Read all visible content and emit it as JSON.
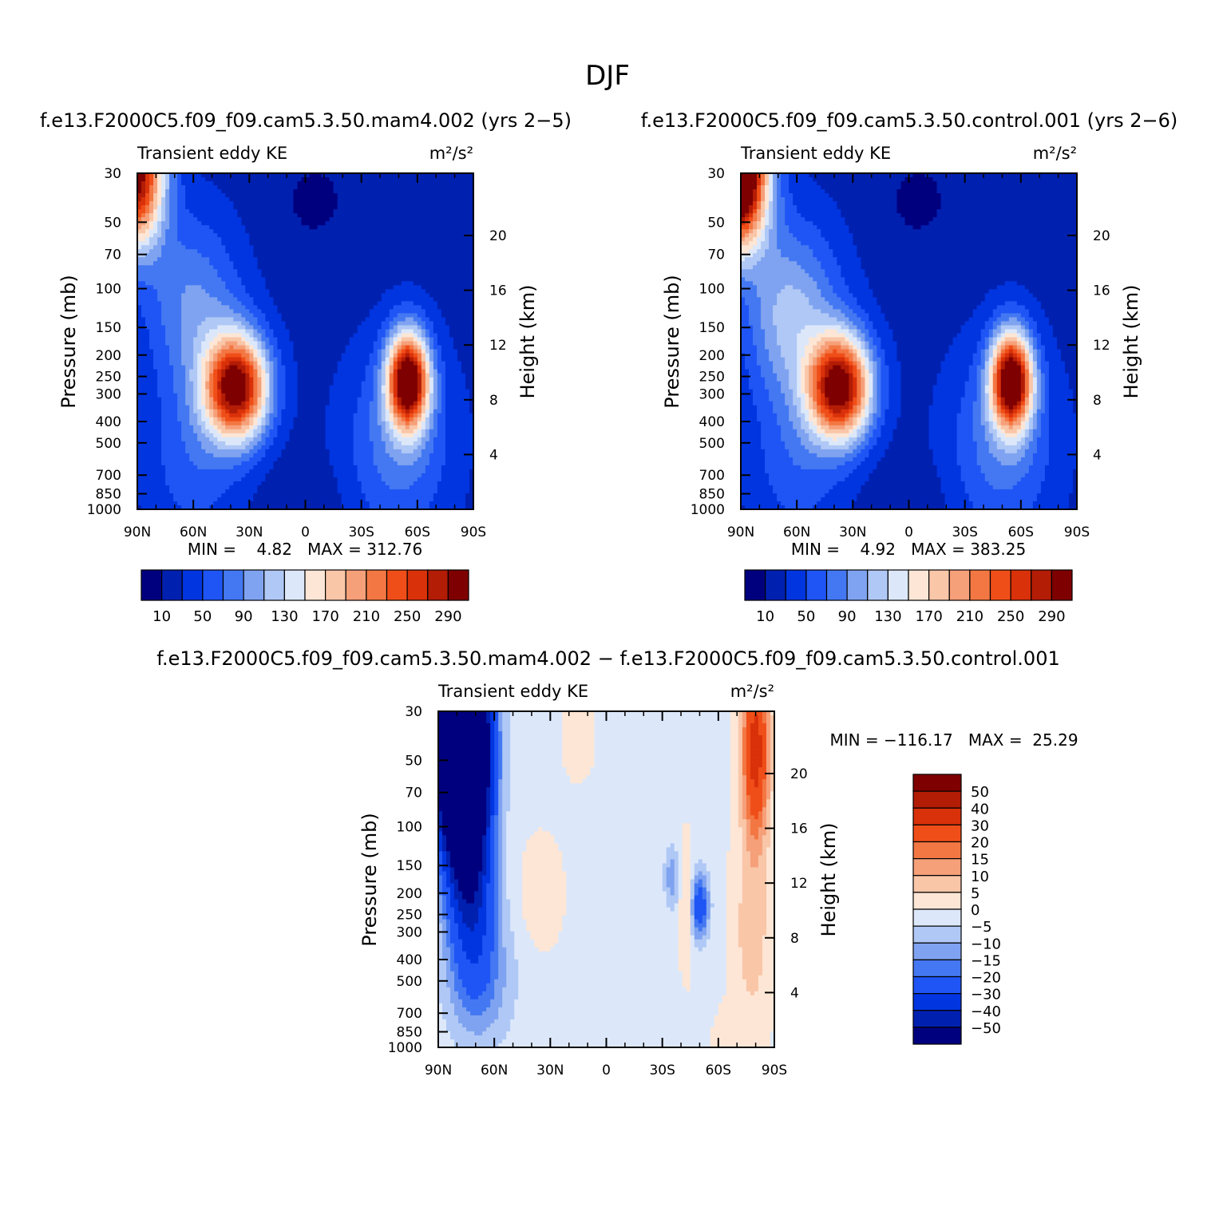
{
  "figure": {
    "title": "DJF"
  },
  "chart_data": [
    {
      "type": "heatmap",
      "title": "f.e13.F2000C5.f09_f09.cam5.3.50.mam4.002 (yrs 2−5)",
      "subtitle_left": "Transient eddy KE",
      "units": "m²/s²",
      "xlabel": "",
      "ylabel": "Pressure (mb)",
      "ylabel_right": "Height (km)",
      "x_ticks": [
        "90N",
        "60N",
        "30N",
        "0",
        "30S",
        "60S",
        "90S"
      ],
      "x_values": [
        90,
        60,
        30,
        0,
        -30,
        -60,
        -90
      ],
      "y_ticks": [
        30,
        50,
        70,
        100,
        150,
        200,
        250,
        300,
        400,
        500,
        700,
        850,
        1000
      ],
      "y_right_ticks": [
        4,
        8,
        12,
        16,
        20
      ],
      "y_scale": "log-pressure",
      "min_label": "MIN =    4.82   MAX = 312.76",
      "colorbar_labels": [
        "10",
        "50",
        "90",
        "130",
        "170",
        "210",
        "250",
        "290"
      ],
      "colorbar_orientation": "horizontal",
      "field_peaks": [
        {
          "lat": 35,
          "p": 270,
          "value": 300
        },
        {
          "lat": -55,
          "p": 250,
          "value": 290
        },
        {
          "lat": 90,
          "p": 30,
          "value": 290
        }
      ]
    },
    {
      "type": "heatmap",
      "title": "f.e13.F2000C5.f09_f09.cam5.3.50.control.001 (yrs 2−6)",
      "subtitle_left": "Transient eddy KE",
      "units": "m²/s²",
      "xlabel": "",
      "ylabel": "Pressure (mb)",
      "ylabel_right": "Height (km)",
      "x_ticks": [
        "90N",
        "60N",
        "30N",
        "0",
        "30S",
        "60S",
        "90S"
      ],
      "x_values": [
        90,
        60,
        30,
        0,
        -30,
        -60,
        -90
      ],
      "y_ticks": [
        30,
        50,
        70,
        100,
        150,
        200,
        250,
        300,
        400,
        500,
        700,
        850,
        1000
      ],
      "y_right_ticks": [
        4,
        8,
        12,
        16,
        20
      ],
      "y_scale": "log-pressure",
      "min_label": "MIN =    4.92   MAX = 383.25",
      "colorbar_labels": [
        "10",
        "50",
        "90",
        "130",
        "170",
        "210",
        "250",
        "290"
      ],
      "colorbar_orientation": "horizontal",
      "field_peaks": [
        {
          "lat": 35,
          "p": 270,
          "value": 300
        },
        {
          "lat": -55,
          "p": 250,
          "value": 300
        },
        {
          "lat": 90,
          "p": 30,
          "value": 380
        }
      ]
    },
    {
      "type": "heatmap",
      "title": "f.e13.F2000C5.f09_f09.cam5.3.50.mam4.002 − f.e13.F2000C5.f09_f09.cam5.3.50.control.001",
      "subtitle_left": "Transient eddy KE",
      "units": "m²/s²",
      "xlabel": "",
      "ylabel": "Pressure (mb)",
      "ylabel_right": "Height (km)",
      "x_ticks": [
        "90N",
        "60N",
        "30N",
        "0",
        "30S",
        "60S",
        "90S"
      ],
      "x_values": [
        90,
        60,
        30,
        0,
        -30,
        -60,
        -90
      ],
      "y_ticks": [
        30,
        50,
        70,
        100,
        150,
        200,
        250,
        300,
        400,
        500,
        700,
        850,
        1000
      ],
      "y_right_ticks": [
        4,
        8,
        12,
        16,
        20
      ],
      "y_scale": "log-pressure",
      "min_label": "MIN = −116.17   MAX =  25.29",
      "colorbar_labels": [
        "50",
        "40",
        "30",
        "20",
        "15",
        "10",
        "5",
        "0",
        "−5",
        "−10",
        "−15",
        "−20",
        "−30",
        "−40",
        "−50"
      ],
      "colorbar_orientation": "vertical",
      "field_peaks": [
        {
          "lat": 75,
          "p": 50,
          "value": -120
        },
        {
          "lat": -78,
          "p": 50,
          "value": 30
        },
        {
          "lat": -50,
          "p": 230,
          "value": -25
        }
      ]
    }
  ],
  "palettes": {
    "absolute": [
      "#00007f",
      "#0020b0",
      "#0035e0",
      "#1f55f5",
      "#4478f2",
      "#7fa3f0",
      "#b0c8f5",
      "#dce8fa",
      "#fde6d5",
      "#f9c6a8",
      "#f6a07a",
      "#f37743",
      "#f04e19",
      "#d9310a",
      "#b31c05",
      "#7f0000"
    ],
    "diff": [
      "#00007f",
      "#0020b0",
      "#0035e0",
      "#1f55f5",
      "#4478f2",
      "#7fa3f0",
      "#b0c8f5",
      "#dce8fa",
      "#fde6d5",
      "#f9c6a8",
      "#f6a07a",
      "#f37743",
      "#f04e19",
      "#d9310a",
      "#b31c05",
      "#7f0000"
    ]
  }
}
